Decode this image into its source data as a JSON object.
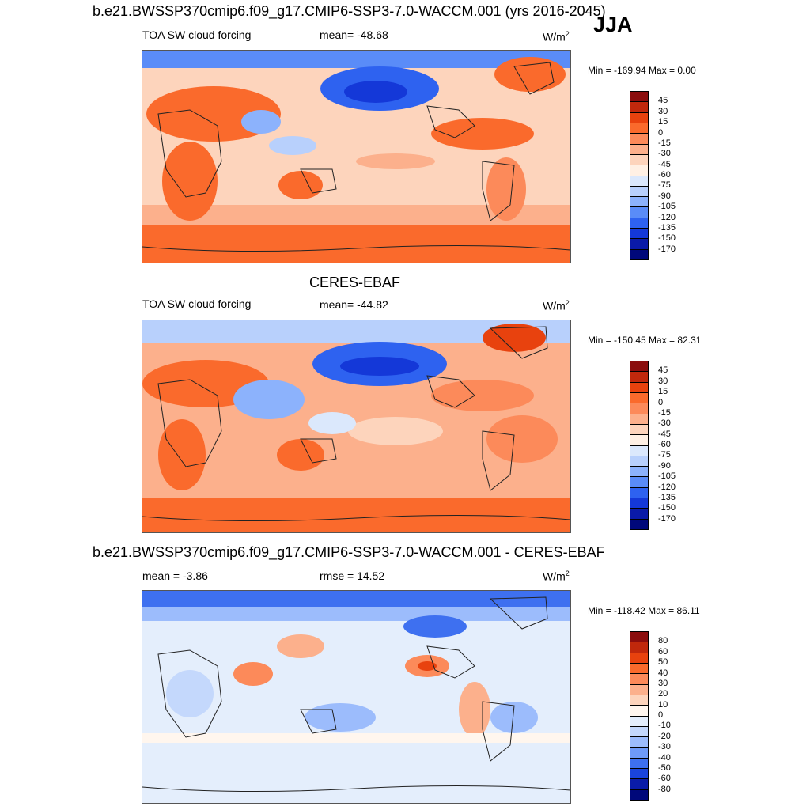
{
  "main_title": "b.e21.BWSSP370cmip6.f09_g17.CMIP6-SSP3-7.0-WACCM.001 (yrs 2016-2045)",
  "season": "JJA",
  "panels": [
    {
      "id": "model",
      "title": "",
      "variable": "TOA SW cloud forcing",
      "stat": "mean= -48.68",
      "units": "W/m",
      "units_sup": "2",
      "minmax": "Min = -169.94 Max =   0.00",
      "levels": [
        "45",
        "30",
        "15",
        "0",
        "-15",
        "-30",
        "-45",
        "-60",
        "-75",
        "-90",
        "-105",
        "-120",
        "-135",
        "-150",
        "-170"
      ],
      "colors": [
        "#8b0d0d",
        "#c0280c",
        "#e8420e",
        "#fa6a2c",
        "#fc8a5a",
        "#fcb08c",
        "#fdd4bc",
        "#fff0e4",
        "#dbe8fc",
        "#b8d0fc",
        "#8cb2fc",
        "#5a8cf8",
        "#2e62f0",
        "#1438d8",
        "#0a1aa8",
        "#00087a"
      ]
    },
    {
      "id": "obs",
      "title": "CERES-EBAF",
      "variable": "TOA SW cloud forcing",
      "stat": "mean= -44.82",
      "units": "W/m",
      "units_sup": "2",
      "minmax": "Min = -150.45 Max =  82.31",
      "levels": [
        "45",
        "30",
        "15",
        "0",
        "-15",
        "-30",
        "-45",
        "-60",
        "-75",
        "-90",
        "-105",
        "-120",
        "-135",
        "-150",
        "-170"
      ],
      "colors": [
        "#8b0d0d",
        "#c0280c",
        "#e8420e",
        "#fa6a2c",
        "#fc8a5a",
        "#fcb08c",
        "#fdd4bc",
        "#fff0e4",
        "#dbe8fc",
        "#b8d0fc",
        "#8cb2fc",
        "#5a8cf8",
        "#2e62f0",
        "#1438d8",
        "#0a1aa8",
        "#00087a"
      ]
    },
    {
      "id": "diff",
      "title": "b.e21.BWSSP370cmip6.f09_g17.CMIP6-SSP3-7.0-WACCM.001 - CERES-EBAF",
      "variable": "mean =  -3.86",
      "stat": "rmse =  14.52",
      "units": "W/m",
      "units_sup": "2",
      "minmax": "Min = -118.42 Max =  86.11",
      "levels": [
        "80",
        "60",
        "50",
        "40",
        "30",
        "20",
        "10",
        "0",
        "-10",
        "-20",
        "-30",
        "-40",
        "-50",
        "-60",
        "-80"
      ],
      "colors": [
        "#8b0d0d",
        "#c0280c",
        "#e8420e",
        "#fa6a2c",
        "#fc8a5a",
        "#fcb08c",
        "#fdd4bc",
        "#fff6ee",
        "#e4eefc",
        "#c4d8fc",
        "#9cbcfc",
        "#6e9af8",
        "#3e70f0",
        "#1a44dc",
        "#0a1ca8",
        "#00087a"
      ]
    }
  ]
}
